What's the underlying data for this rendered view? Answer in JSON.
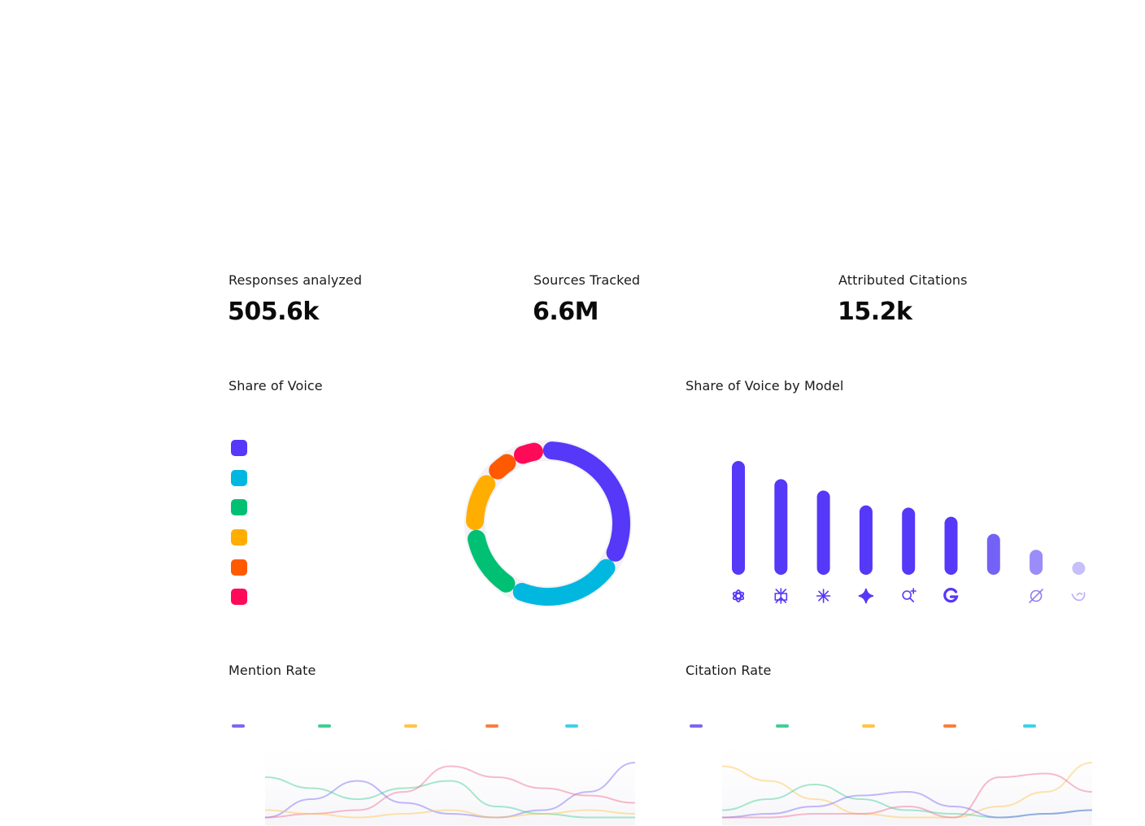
{
  "stats": [
    {
      "label": "Responses analyzed",
      "value": "505.6k"
    },
    {
      "label": "Sources Tracked",
      "value": "6.6M"
    },
    {
      "label": "Attributed Citations",
      "value": "15.2k"
    }
  ],
  "share_of_voice": {
    "title": "Share of Voice",
    "colors": [
      "#5538f8",
      "#00b8df",
      "#00c073",
      "#ffae00",
      "#ff5a00",
      "#ff0a58"
    ]
  },
  "share_by_model": {
    "title": "Share of Voice by Model",
    "icons": [
      "openai-icon",
      "perplexity-icon",
      "claude-icon",
      "gemini-icon",
      "search-ai-icon",
      "google-icon",
      "empty-icon",
      "grok-icon",
      "deepseek-icon"
    ]
  },
  "mention_rate": {
    "title": "Mention Rate",
    "legend_colors": [
      "#7b66f6",
      "#3fcf93",
      "#ffc447",
      "#ff7b3d",
      "#3dd2e8"
    ]
  },
  "citation_rate": {
    "title": "Citation Rate",
    "legend_colors": [
      "#7b66f6",
      "#3fcf93",
      "#ffc447",
      "#ff7b3d",
      "#3dd2e8"
    ]
  },
  "chart_data": [
    {
      "type": "pie",
      "title": "Share of Voice",
      "values": [
        36,
        24,
        14,
        10,
        3,
        3
      ],
      "colors": [
        "#5538f8",
        "#00b8df",
        "#00c073",
        "#ffae00",
        "#ff5a00",
        "#ff0a58"
      ]
    },
    {
      "type": "bar",
      "title": "Share of Voice by Model",
      "values": [
        100,
        84,
        74,
        61,
        59,
        51,
        36,
        22,
        10
      ],
      "colors": [
        "#5538f8",
        "#5538f8",
        "#5538f8",
        "#5538f8",
        "#5538f8",
        "#5538f8",
        "#7462f7",
        "#9a8cf9",
        "#c6bffb"
      ],
      "ylim": [
        0,
        100
      ]
    },
    {
      "type": "line",
      "title": "Mention Rate",
      "ylim": [
        0,
        100
      ],
      "series": [
        {
          "color": "#7b66f6",
          "values": [
            5,
            30,
            55,
            25,
            10,
            5,
            15,
            40,
            80
          ]
        },
        {
          "color": "#3fcf93",
          "values": [
            60,
            45,
            30,
            45,
            55,
            20,
            10,
            5,
            5
          ]
        },
        {
          "color": "#f06a8c",
          "values": [
            5,
            10,
            15,
            40,
            75,
            60,
            45,
            35,
            25
          ]
        },
        {
          "color": "#ffc447",
          "values": [
            15,
            10,
            5,
            10,
            15,
            5,
            10,
            15,
            10
          ]
        }
      ]
    },
    {
      "type": "line",
      "title": "Citation Rate",
      "ylim": [
        0,
        100
      ],
      "series": [
        {
          "color": "#ffc447",
          "values": [
            75,
            55,
            30,
            10,
            5,
            5,
            20,
            40,
            80
          ]
        },
        {
          "color": "#3fcf93",
          "values": [
            15,
            30,
            50,
            30,
            15,
            10,
            5,
            10,
            15
          ]
        },
        {
          "color": "#7b66f6",
          "values": [
            5,
            10,
            20,
            35,
            40,
            20,
            5,
            10,
            15
          ]
        },
        {
          "color": "#f06a8c",
          "values": [
            5,
            5,
            10,
            10,
            20,
            5,
            60,
            65,
            40
          ]
        }
      ]
    }
  ]
}
